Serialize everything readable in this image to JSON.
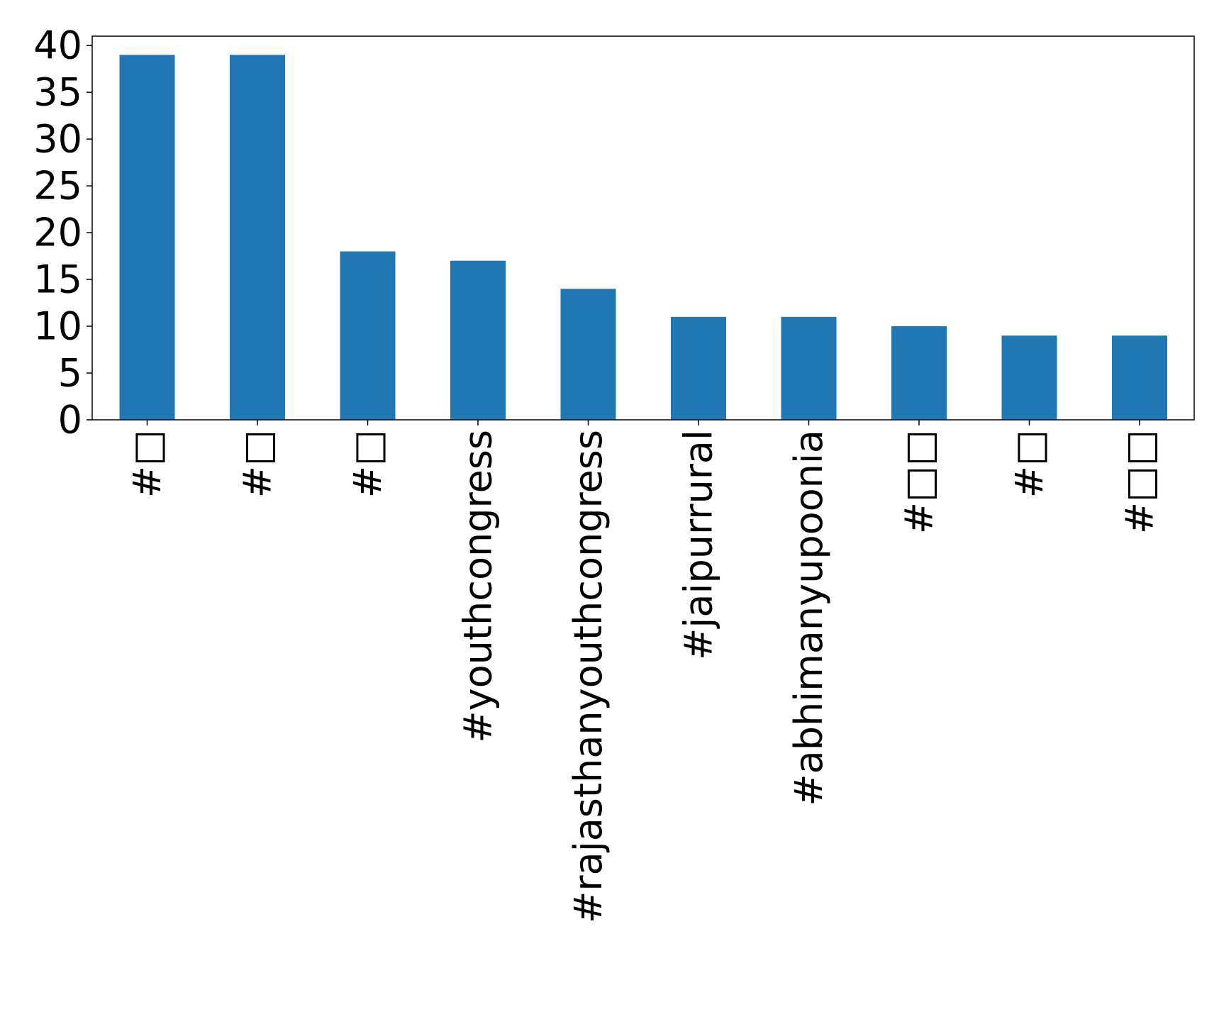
{
  "chart_data": {
    "type": "bar",
    "title": "",
    "xlabel": "",
    "ylabel": "",
    "categories": [
      "#□",
      "#□",
      "#□",
      "#youthcongress",
      "#rajasthanyouthcongress",
      "#jaipurrural",
      "#abhimanyupoonia",
      "#□□",
      "#□",
      "#□□"
    ],
    "values": [
      39,
      39,
      18,
      17,
      14,
      11,
      11,
      10,
      9,
      9
    ],
    "ylim": [
      0,
      41
    ],
    "yticks": [
      0,
      5,
      10,
      15,
      20,
      25,
      30,
      35,
      40
    ],
    "grid": false,
    "legend": "none",
    "bar_color": "#1f77b4"
  }
}
